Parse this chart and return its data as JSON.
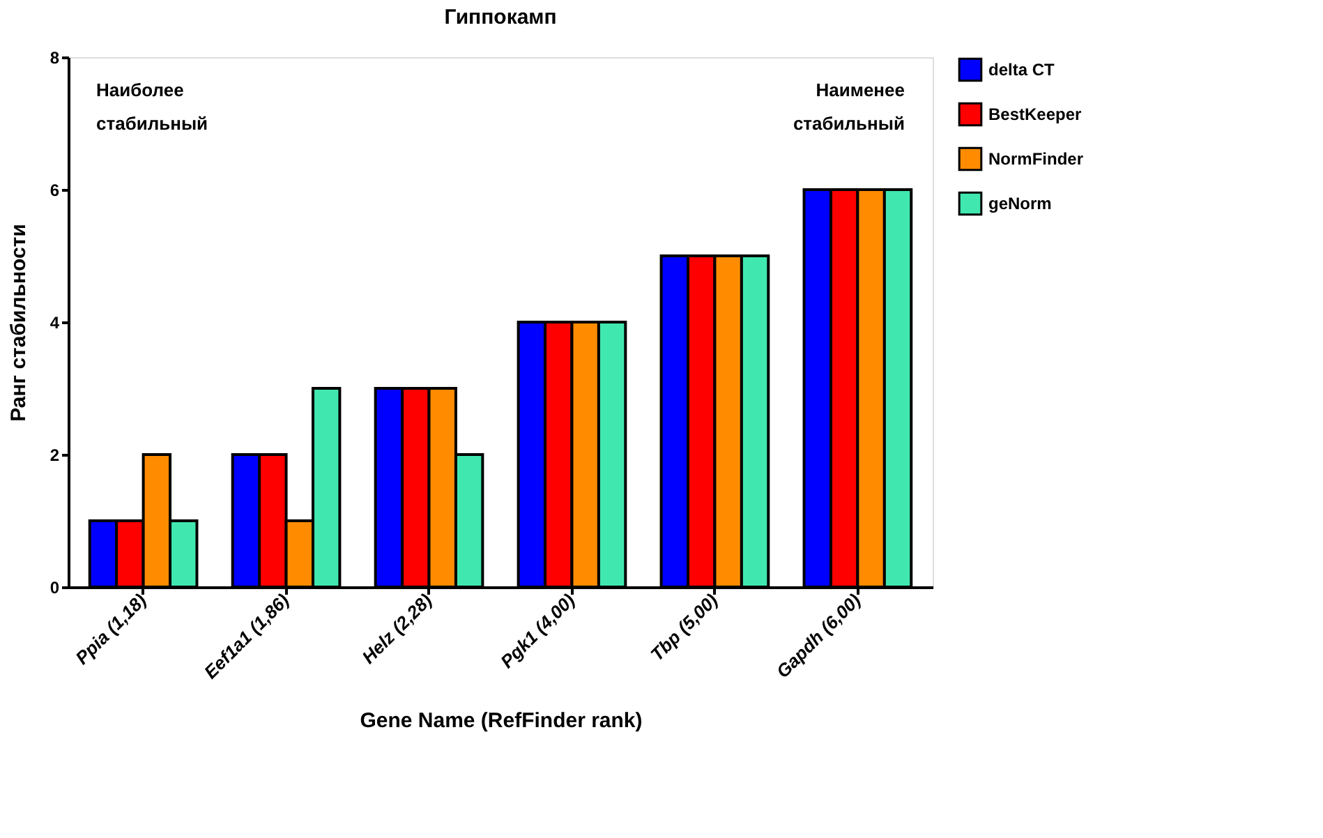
{
  "chart_data": {
    "type": "bar",
    "title": "Гиппокамп",
    "xlabel": "Gene Name (RefFinder rank)",
    "ylabel": "Ранг стабильности",
    "categories": [
      "Ppia (1,18)",
      "Eef1a1 (1,86)",
      "Helz (2,28)",
      "Pgk1 (4,00)",
      "Tbp (5,00)",
      "Gapdh (6,00)"
    ],
    "series": [
      {
        "name": "delta CT",
        "color": "#0000ff",
        "values": [
          1,
          2,
          3,
          4,
          5,
          6
        ]
      },
      {
        "name": "BestKeeper",
        "color": "#ff0000",
        "values": [
          1,
          2,
          3,
          4,
          5,
          6
        ]
      },
      {
        "name": "NormFinder",
        "color": "#ff8c00",
        "values": [
          2,
          1,
          3,
          4,
          5,
          6
        ]
      },
      {
        "name": "geNorm",
        "color": "#40e8b0",
        "values": [
          1,
          3,
          2,
          4,
          5,
          6
        ]
      }
    ],
    "annotations": [
      "Наиболее\nстабильный",
      "Наименее\nстабильный"
    ],
    "ylim": [
      0,
      8
    ],
    "yticks": [
      0,
      2,
      4,
      6,
      8
    ],
    "grid": false,
    "legend": "top right"
  }
}
